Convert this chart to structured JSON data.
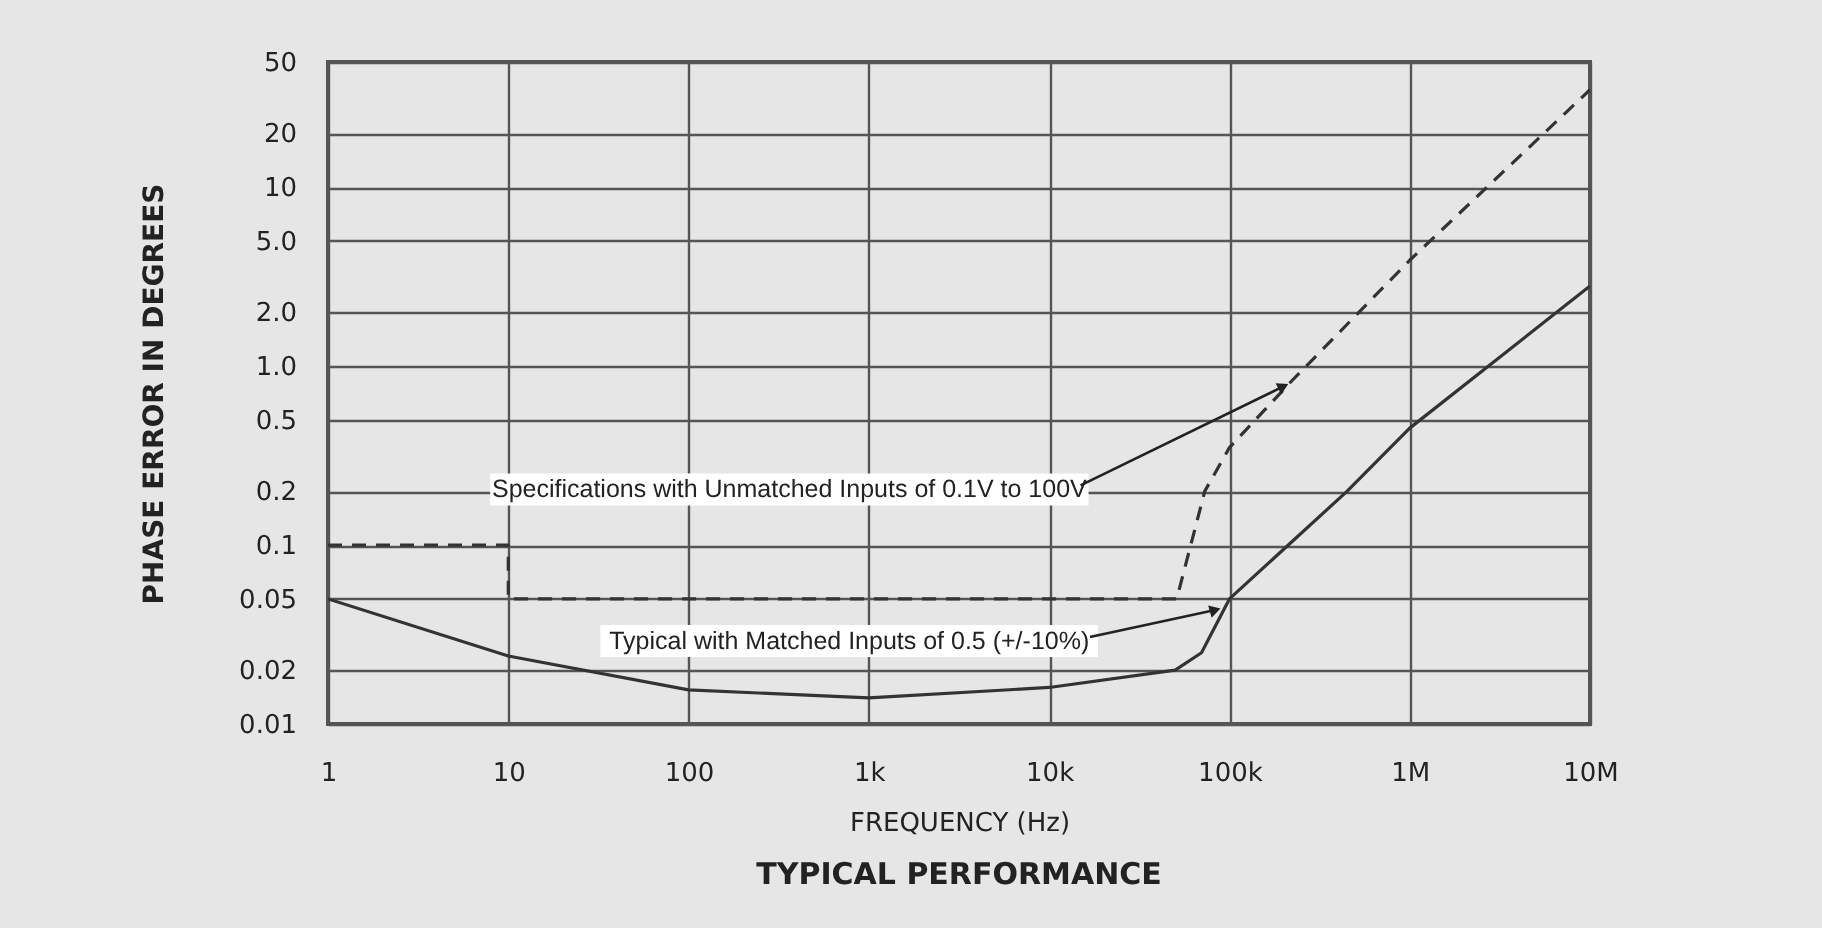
{
  "chart_data": {
    "type": "line",
    "title": "TYPICAL PERFORMANCE",
    "xlabel": "FREQUENCY (Hz)",
    "ylabel": "PHASE ERROR IN DEGREES",
    "log": "xy",
    "grid": true,
    "marker": "none",
    "xlim": [
      1,
      10000000
    ],
    "xticks": [
      1,
      10,
      100,
      {
        "value": 1000,
        "label": "1k"
      },
      {
        "value": 10000,
        "label": "10k"
      },
      {
        "value": 100000,
        "label": "100k"
      },
      {
        "value": 1000000,
        "label": "1M"
      },
      {
        "value": 10000000,
        "label": "10M"
      }
    ],
    "ylim": [
      0.01,
      50
    ],
    "yticks": [
      0.01,
      0.02,
      0.05,
      0.1,
      0.2,
      0.5,
      {
        "value": 1,
        "label": "1.0"
      },
      {
        "value": 2,
        "label": "2.0"
      },
      {
        "value": 5,
        "label": "5.0"
      },
      10,
      20,
      50
    ],
    "series": [
      {
        "color": "#333333",
        "line_style": "dashed",
        "x": [
          1,
          10,
          10,
          51000,
          73000,
          100000,
          215000,
          1000000,
          10000000
        ],
        "values": [
          0.1,
          0.1,
          0.05,
          0.05,
          0.2,
          0.35,
          0.8,
          3.9,
          35
        ]
      },
      {
        "color": "#333333",
        "line_style": "solid",
        "x": [
          1,
          10,
          100,
          1000,
          10000,
          50000,
          70000,
          100000,
          450000,
          1000000,
          10000000
        ],
        "values": [
          0.05,
          0.024,
          0.0155,
          0.014,
          0.016,
          0.02,
          0.025,
          0.05,
          0.2,
          0.45,
          2.8
        ]
      }
    ],
    "annotations": [
      {
        "text": "Specifications with Unmatched Inputs of 0.1V to 100V",
        "x": 215000,
        "y": 0.8
      },
      {
        "text": "Typical with Matched Inputs of 0.5 (+/-10%)",
        "x": 90000,
        "y": 0.045
      }
    ]
  }
}
